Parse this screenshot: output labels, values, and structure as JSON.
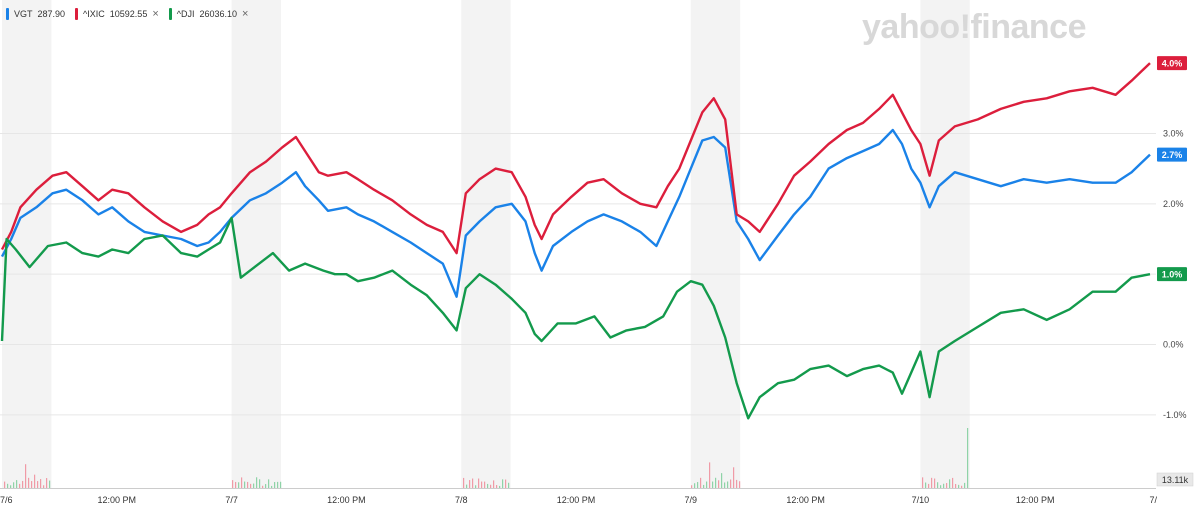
{
  "watermark": "yahoo!finance",
  "legend": [
    {
      "symbol": "VGT",
      "value": "287.90",
      "color": "#1a82e8",
      "closable": false
    },
    {
      "symbol": "^IXIC",
      "value": "10592.55",
      "color": "#dc1e3c",
      "closable": true
    },
    {
      "symbol": "^DJI",
      "value": "26036.10",
      "color": "#139a4c",
      "closable": true
    }
  ],
  "close_glyph": "×",
  "last_values": {
    "VGT": "2.7%",
    "IXIC": "4.0%",
    "DJI": "1.0%"
  },
  "volume_label": "13.11k",
  "chart_data": {
    "type": "line",
    "yunit": "%",
    "ylim": [
      -1.5,
      4.4
    ],
    "yticks": [
      {
        "value": 3.0,
        "label": "3.0%"
      },
      {
        "value": 2.0,
        "label": "2.0%"
      },
      {
        "value": 1.0,
        "label": "1.0%"
      },
      {
        "value": 0.0,
        "label": "0.0%"
      },
      {
        "value": -1.0,
        "label": "-1.0%"
      }
    ],
    "xlim": [
      0,
      5
    ],
    "session_bands": [
      {
        "start": 0.0,
        "end": 0.215
      },
      {
        "start": 1.0,
        "end": 1.215
      },
      {
        "start": 2.0,
        "end": 2.215
      },
      {
        "start": 3.0,
        "end": 3.215
      },
      {
        "start": 4.0,
        "end": 4.215
      }
    ],
    "xticks": [
      {
        "t": 0.0,
        "label": "7/6"
      },
      {
        "t": 0.5,
        "label": "12:00 PM"
      },
      {
        "t": 1.0,
        "label": "7/7"
      },
      {
        "t": 1.5,
        "label": "12:00 PM"
      },
      {
        "t": 2.0,
        "label": "7/8"
      },
      {
        "t": 2.5,
        "label": "12:00 PM"
      },
      {
        "t": 3.0,
        "label": "7/9"
      },
      {
        "t": 3.5,
        "label": "12:00 PM"
      },
      {
        "t": 4.0,
        "label": "7/10"
      },
      {
        "t": 4.5,
        "label": "12:00 PM"
      },
      {
        "t": 5.0,
        "label": "7/"
      }
    ],
    "series": [
      {
        "name": "VGT",
        "color": "#1a82e8",
        "points": [
          [
            0.0,
            1.25
          ],
          [
            0.04,
            1.5
          ],
          [
            0.08,
            1.8
          ],
          [
            0.15,
            1.95
          ],
          [
            0.22,
            2.15
          ],
          [
            0.28,
            2.2
          ],
          [
            0.35,
            2.05
          ],
          [
            0.42,
            1.85
          ],
          [
            0.48,
            1.95
          ],
          [
            0.55,
            1.75
          ],
          [
            0.62,
            1.6
          ],
          [
            0.7,
            1.55
          ],
          [
            0.78,
            1.5
          ],
          [
            0.85,
            1.4
          ],
          [
            0.9,
            1.45
          ],
          [
            0.95,
            1.6
          ],
          [
            1.0,
            1.8
          ],
          [
            1.08,
            2.05
          ],
          [
            1.15,
            2.15
          ],
          [
            1.22,
            2.3
          ],
          [
            1.28,
            2.45
          ],
          [
            1.32,
            2.25
          ],
          [
            1.38,
            2.05
          ],
          [
            1.42,
            1.9
          ],
          [
            1.5,
            1.95
          ],
          [
            1.55,
            1.85
          ],
          [
            1.62,
            1.75
          ],
          [
            1.7,
            1.6
          ],
          [
            1.78,
            1.45
          ],
          [
            1.85,
            1.3
          ],
          [
            1.92,
            1.15
          ],
          [
            1.98,
            0.68
          ],
          [
            2.02,
            1.55
          ],
          [
            2.08,
            1.75
          ],
          [
            2.15,
            1.95
          ],
          [
            2.22,
            2.0
          ],
          [
            2.28,
            1.75
          ],
          [
            2.32,
            1.3
          ],
          [
            2.35,
            1.05
          ],
          [
            2.4,
            1.4
          ],
          [
            2.48,
            1.6
          ],
          [
            2.55,
            1.75
          ],
          [
            2.62,
            1.85
          ],
          [
            2.7,
            1.75
          ],
          [
            2.78,
            1.6
          ],
          [
            2.85,
            1.4
          ],
          [
            2.9,
            1.75
          ],
          [
            2.95,
            2.1
          ],
          [
            3.0,
            2.5
          ],
          [
            3.05,
            2.9
          ],
          [
            3.1,
            2.95
          ],
          [
            3.15,
            2.8
          ],
          [
            3.2,
            1.75
          ],
          [
            3.25,
            1.5
          ],
          [
            3.3,
            1.2
          ],
          [
            3.38,
            1.55
          ],
          [
            3.45,
            1.85
          ],
          [
            3.52,
            2.1
          ],
          [
            3.6,
            2.5
          ],
          [
            3.68,
            2.65
          ],
          [
            3.75,
            2.75
          ],
          [
            3.82,
            2.85
          ],
          [
            3.88,
            3.05
          ],
          [
            3.92,
            2.85
          ],
          [
            3.96,
            2.5
          ],
          [
            4.0,
            2.3
          ],
          [
            4.04,
            1.95
          ],
          [
            4.08,
            2.25
          ],
          [
            4.15,
            2.45
          ],
          [
            4.25,
            2.35
          ],
          [
            4.35,
            2.25
          ],
          [
            4.45,
            2.35
          ],
          [
            4.55,
            2.3
          ],
          [
            4.65,
            2.35
          ],
          [
            4.75,
            2.3
          ],
          [
            4.85,
            2.3
          ],
          [
            4.92,
            2.45
          ],
          [
            5.0,
            2.7
          ]
        ]
      },
      {
        "name": "^IXIC",
        "color": "#dc1e3c",
        "points": [
          [
            0.0,
            1.35
          ],
          [
            0.04,
            1.6
          ],
          [
            0.08,
            1.95
          ],
          [
            0.15,
            2.2
          ],
          [
            0.22,
            2.4
          ],
          [
            0.28,
            2.45
          ],
          [
            0.35,
            2.25
          ],
          [
            0.42,
            2.05
          ],
          [
            0.48,
            2.2
          ],
          [
            0.55,
            2.15
          ],
          [
            0.62,
            1.95
          ],
          [
            0.7,
            1.75
          ],
          [
            0.78,
            1.6
          ],
          [
            0.85,
            1.7
          ],
          [
            0.9,
            1.85
          ],
          [
            0.95,
            1.95
          ],
          [
            1.0,
            2.15
          ],
          [
            1.08,
            2.45
          ],
          [
            1.15,
            2.6
          ],
          [
            1.22,
            2.8
          ],
          [
            1.28,
            2.95
          ],
          [
            1.32,
            2.75
          ],
          [
            1.38,
            2.45
          ],
          [
            1.42,
            2.4
          ],
          [
            1.5,
            2.45
          ],
          [
            1.55,
            2.35
          ],
          [
            1.62,
            2.2
          ],
          [
            1.7,
            2.05
          ],
          [
            1.78,
            1.85
          ],
          [
            1.85,
            1.7
          ],
          [
            1.92,
            1.6
          ],
          [
            1.98,
            1.3
          ],
          [
            2.02,
            2.15
          ],
          [
            2.08,
            2.35
          ],
          [
            2.15,
            2.5
          ],
          [
            2.22,
            2.45
          ],
          [
            2.28,
            2.1
          ],
          [
            2.32,
            1.7
          ],
          [
            2.35,
            1.5
          ],
          [
            2.4,
            1.85
          ],
          [
            2.48,
            2.1
          ],
          [
            2.55,
            2.3
          ],
          [
            2.62,
            2.35
          ],
          [
            2.7,
            2.15
          ],
          [
            2.78,
            2.0
          ],
          [
            2.85,
            1.95
          ],
          [
            2.9,
            2.25
          ],
          [
            2.95,
            2.5
          ],
          [
            3.0,
            2.9
          ],
          [
            3.05,
            3.3
          ],
          [
            3.1,
            3.5
          ],
          [
            3.15,
            3.2
          ],
          [
            3.2,
            1.85
          ],
          [
            3.25,
            1.75
          ],
          [
            3.3,
            1.6
          ],
          [
            3.38,
            2.0
          ],
          [
            3.45,
            2.4
          ],
          [
            3.52,
            2.6
          ],
          [
            3.6,
            2.85
          ],
          [
            3.68,
            3.05
          ],
          [
            3.75,
            3.15
          ],
          [
            3.82,
            3.35
          ],
          [
            3.88,
            3.55
          ],
          [
            3.92,
            3.3
          ],
          [
            3.96,
            3.05
          ],
          [
            4.0,
            2.85
          ],
          [
            4.04,
            2.4
          ],
          [
            4.08,
            2.9
          ],
          [
            4.15,
            3.1
          ],
          [
            4.25,
            3.2
          ],
          [
            4.35,
            3.35
          ],
          [
            4.45,
            3.45
          ],
          [
            4.55,
            3.5
          ],
          [
            4.65,
            3.6
          ],
          [
            4.75,
            3.65
          ],
          [
            4.85,
            3.55
          ],
          [
            4.92,
            3.75
          ],
          [
            5.0,
            4.0
          ]
        ]
      },
      {
        "name": "^DJI",
        "color": "#139a4c",
        "points": [
          [
            0.0,
            0.05
          ],
          [
            0.02,
            1.5
          ],
          [
            0.06,
            1.35
          ],
          [
            0.12,
            1.1
          ],
          [
            0.2,
            1.4
          ],
          [
            0.28,
            1.45
          ],
          [
            0.35,
            1.3
          ],
          [
            0.42,
            1.25
          ],
          [
            0.48,
            1.35
          ],
          [
            0.55,
            1.3
          ],
          [
            0.62,
            1.5
          ],
          [
            0.7,
            1.55
          ],
          [
            0.78,
            1.3
          ],
          [
            0.85,
            1.25
          ],
          [
            0.9,
            1.35
          ],
          [
            0.95,
            1.45
          ],
          [
            1.0,
            1.8
          ],
          [
            1.04,
            0.95
          ],
          [
            1.1,
            1.1
          ],
          [
            1.18,
            1.3
          ],
          [
            1.25,
            1.05
          ],
          [
            1.32,
            1.15
          ],
          [
            1.4,
            1.05
          ],
          [
            1.45,
            1.0
          ],
          [
            1.5,
            1.0
          ],
          [
            1.55,
            0.9
          ],
          [
            1.62,
            0.95
          ],
          [
            1.7,
            1.05
          ],
          [
            1.78,
            0.85
          ],
          [
            1.85,
            0.7
          ],
          [
            1.92,
            0.45
          ],
          [
            1.98,
            0.2
          ],
          [
            2.02,
            0.8
          ],
          [
            2.08,
            1.0
          ],
          [
            2.15,
            0.85
          ],
          [
            2.22,
            0.65
          ],
          [
            2.28,
            0.45
          ],
          [
            2.32,
            0.15
          ],
          [
            2.35,
            0.05
          ],
          [
            2.42,
            0.3
          ],
          [
            2.5,
            0.3
          ],
          [
            2.58,
            0.4
          ],
          [
            2.65,
            0.1
          ],
          [
            2.72,
            0.2
          ],
          [
            2.8,
            0.25
          ],
          [
            2.88,
            0.4
          ],
          [
            2.94,
            0.75
          ],
          [
            3.0,
            0.9
          ],
          [
            3.05,
            0.85
          ],
          [
            3.1,
            0.55
          ],
          [
            3.15,
            0.1
          ],
          [
            3.2,
            -0.55
          ],
          [
            3.25,
            -1.05
          ],
          [
            3.3,
            -0.75
          ],
          [
            3.38,
            -0.55
          ],
          [
            3.45,
            -0.5
          ],
          [
            3.52,
            -0.35
          ],
          [
            3.6,
            -0.3
          ],
          [
            3.68,
            -0.45
          ],
          [
            3.75,
            -0.35
          ],
          [
            3.82,
            -0.3
          ],
          [
            3.88,
            -0.4
          ],
          [
            3.92,
            -0.7
          ],
          [
            3.96,
            -0.4
          ],
          [
            4.0,
            -0.1
          ],
          [
            4.04,
            -0.75
          ],
          [
            4.08,
            -0.1
          ],
          [
            4.15,
            0.05
          ],
          [
            4.25,
            0.25
          ],
          [
            4.35,
            0.45
          ],
          [
            4.45,
            0.5
          ],
          [
            4.55,
            0.35
          ],
          [
            4.65,
            0.5
          ],
          [
            4.75,
            0.75
          ],
          [
            4.85,
            0.75
          ],
          [
            4.92,
            0.95
          ],
          [
            5.0,
            1.0
          ]
        ]
      }
    ]
  }
}
